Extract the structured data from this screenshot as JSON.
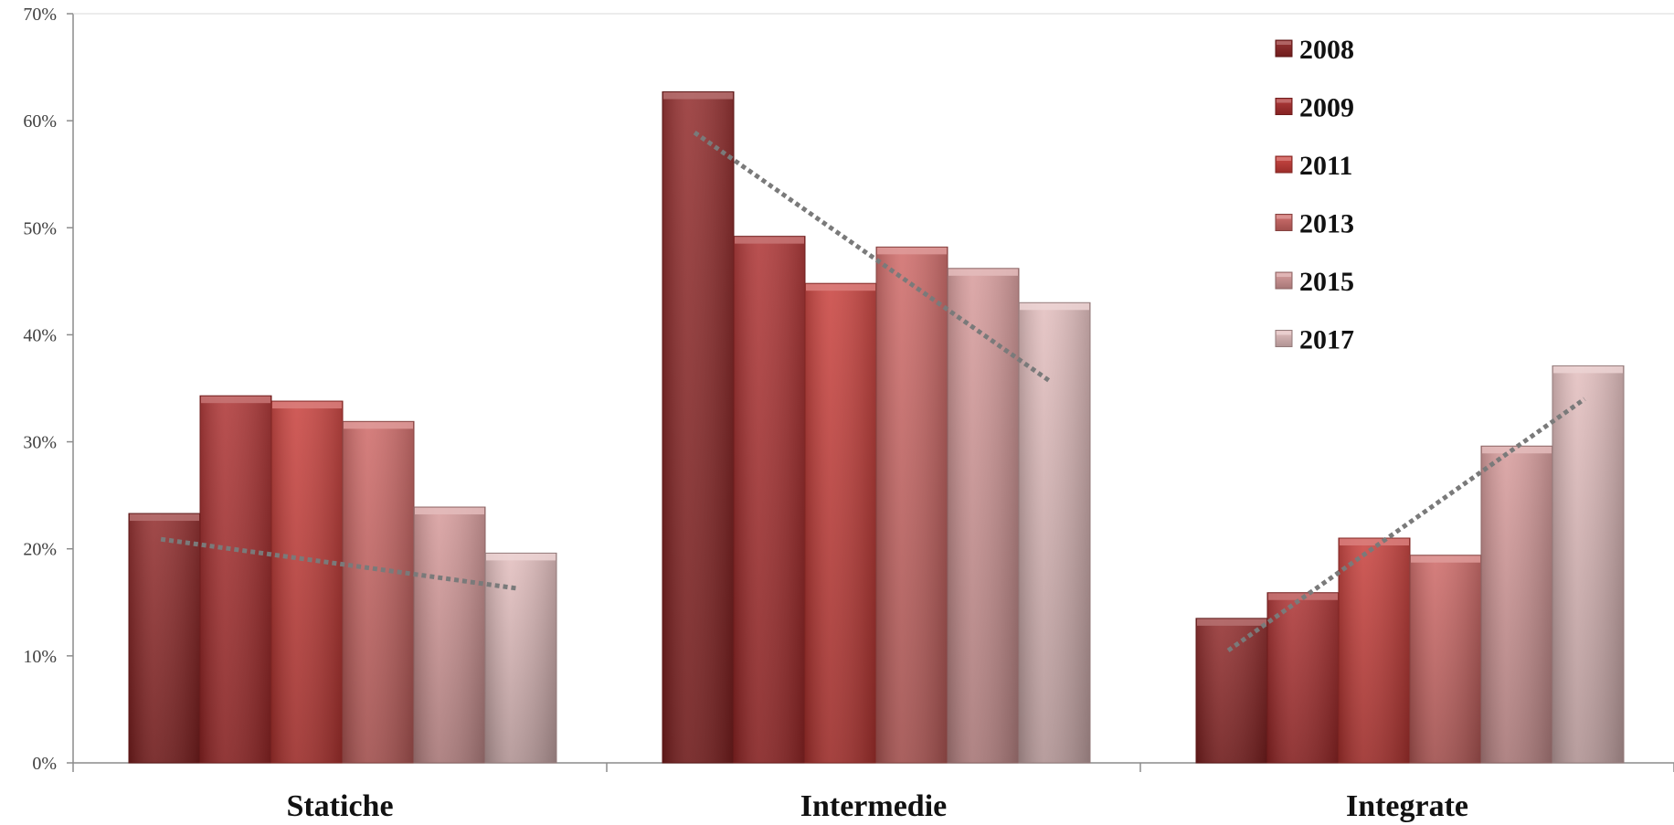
{
  "chart_data": {
    "type": "bar",
    "categories": [
      "Statiche",
      "Intermedie",
      "Integrate"
    ],
    "series": [
      {
        "name": "2008",
        "values": [
          23.3,
          62.7,
          13.5
        ],
        "color": "#8e2424"
      },
      {
        "name": "2009",
        "values": [
          34.3,
          49.2,
          15.9
        ],
        "color": "#aa2c2c"
      },
      {
        "name": "2011",
        "values": [
          33.8,
          44.8,
          21.0
        ],
        "color": "#c73a36"
      },
      {
        "name": "2013",
        "values": [
          31.9,
          48.2,
          19.4
        ],
        "color": "#cd6563"
      },
      {
        "name": "2015",
        "values": [
          23.9,
          46.2,
          29.6
        ],
        "color": "#d69898"
      },
      {
        "name": "2017",
        "values": [
          19.6,
          43.0,
          37.1
        ],
        "color": "#e2bcbc"
      }
    ],
    "trendlines": [
      {
        "category": "Statiche",
        "start": 20.9,
        "end": 16.3
      },
      {
        "category": "Intermedie",
        "start": 58.9,
        "end": 35.6
      },
      {
        "category": "Integrate",
        "start": 10.5,
        "end": 34.0
      }
    ],
    "y_ticks": [
      "0%",
      "10%",
      "20%",
      "30%",
      "40%",
      "50%",
      "60%",
      "70%"
    ],
    "ylim": [
      0,
      70
    ],
    "grid": false,
    "legend_position": "top-center-right",
    "trendline_color": "#7a7a7a",
    "axis_color": "#8c8c8c"
  }
}
